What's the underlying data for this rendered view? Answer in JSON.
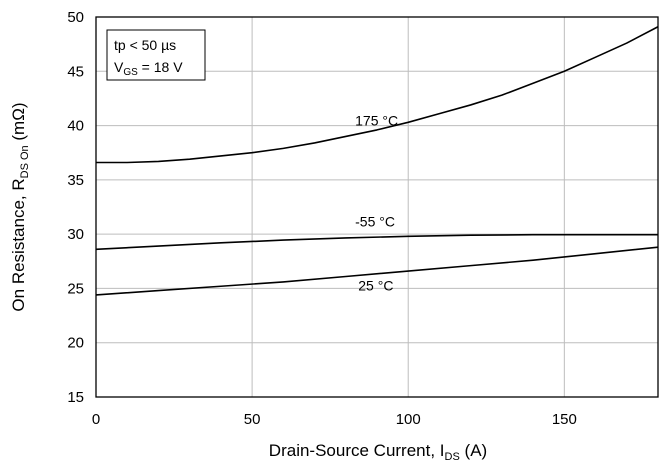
{
  "chart_data": {
    "type": "line",
    "xlabel": "Drain-Source Current, I",
    "xlabel_sub": "DS",
    "xlabel_suffix": " (A)",
    "ylabel": "On Resistance, R",
    "ylabel_sub": "DS On",
    "ylabel_suffix": " (mΩ)",
    "xlim": [
      0,
      180
    ],
    "ylim": [
      15,
      50
    ],
    "xticks": [
      0,
      50,
      100,
      150
    ],
    "yticks": [
      15,
      20,
      25,
      30,
      35,
      40,
      45,
      50
    ],
    "grid": true,
    "annotation": {
      "line1": "tp < 50 µs",
      "line2_prefix": "V",
      "line2_sub": "GS",
      "line2_suffix": " = 18 V"
    },
    "series": [
      {
        "name": "175 °C",
        "x": [
          0,
          10,
          20,
          30,
          40,
          50,
          60,
          70,
          80,
          90,
          100,
          110,
          120,
          130,
          140,
          150,
          160,
          170,
          180
        ],
        "y": [
          36.6,
          36.6,
          36.7,
          36.9,
          37.2,
          37.5,
          37.9,
          38.4,
          39.0,
          39.6,
          40.3,
          41.1,
          41.9,
          42.8,
          43.9,
          45.0,
          46.3,
          47.6,
          49.1
        ]
      },
      {
        "name": "-55 °C",
        "x": [
          0,
          20,
          40,
          60,
          80,
          100,
          120,
          140,
          160,
          180
        ],
        "y": [
          28.6,
          28.9,
          29.2,
          29.45,
          29.65,
          29.8,
          29.9,
          29.95,
          29.95,
          29.95
        ]
      },
      {
        "name": "25 °C",
        "x": [
          0,
          20,
          40,
          60,
          80,
          100,
          120,
          140,
          160,
          180
        ],
        "y": [
          24.4,
          24.8,
          25.2,
          25.6,
          26.1,
          26.6,
          27.1,
          27.6,
          28.2,
          28.8
        ]
      }
    ],
    "labels": [
      {
        "text": "175 °C",
        "x": 83,
        "y": 40.0
      },
      {
        "text": "-55 °C",
        "x": 83,
        "y": 30.7
      },
      {
        "text": "25 °C",
        "x": 84,
        "y": 24.8
      }
    ]
  }
}
